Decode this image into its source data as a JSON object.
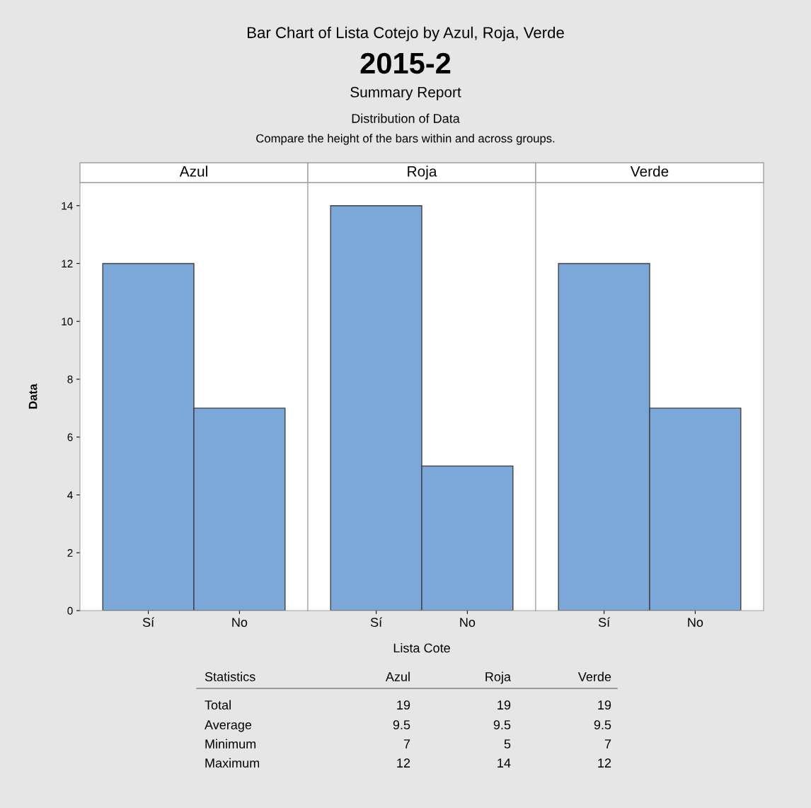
{
  "chart_data": [
    {
      "type": "other",
      "title": "Bar Chart of Lista Cotejo by Azul, Roja, Verde",
      "subtitle": "2015-2",
      "annotations": [
        "Summary Report",
        "Distribution of Data",
        "Compare the height of the bars within and across groups."
      ]
    },
    {
      "type": "bar",
      "title": "Azul",
      "ylabel": "Data",
      "categories": [
        "Sí",
        "No"
      ],
      "values": [
        12,
        7
      ],
      "color": "#7ba7d9",
      "ylim": [
        0,
        14.8
      ],
      "yticks": [
        0,
        2,
        4,
        6,
        8,
        10,
        12,
        14
      ]
    },
    {
      "type": "bar",
      "title": "Roja",
      "xlabel": "Lista Cote",
      "categories": [
        "Sí",
        "No"
      ],
      "values": [
        14,
        5
      ],
      "color": "#7ba7d9",
      "ylim": [
        0,
        14.8
      ],
      "yticks": [
        0,
        2,
        4,
        6,
        8,
        10,
        12,
        14
      ],
      "tick_labels": "x"
    },
    {
      "type": "bar",
      "title": "Verde",
      "categories": [
        "Sí",
        "No"
      ],
      "values": [
        12,
        7
      ],
      "color": "#7ba7d9",
      "ylim": [
        0,
        14.8
      ],
      "yticks": [
        0,
        2,
        4,
        6,
        8,
        10,
        12,
        14
      ],
      "tick_labels": "x"
    },
    {
      "type": "other",
      "annotations": [
        "Statistics",
        "Azul",
        "Roja",
        "Verde",
        "Total",
        "19",
        "19",
        "19",
        "Average",
        "9.5",
        "9.5",
        "9.5",
        "Minimum",
        "7",
        "5",
        "7",
        "Maximum",
        "12",
        "14",
        "12"
      ]
    }
  ]
}
